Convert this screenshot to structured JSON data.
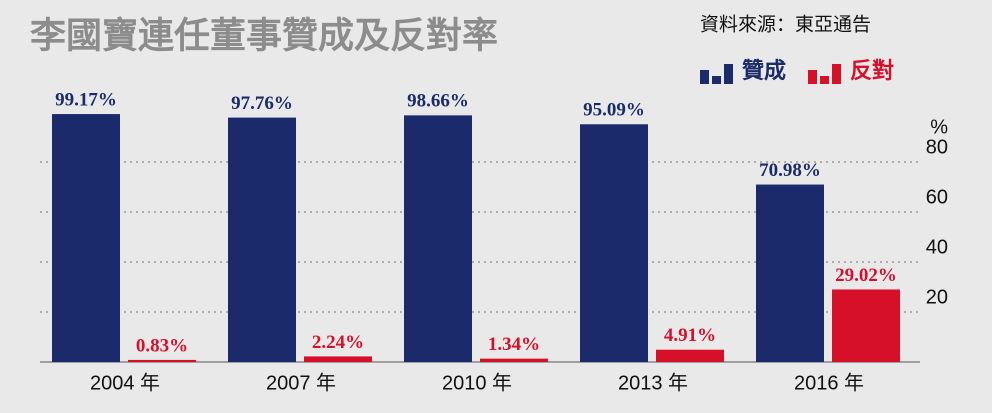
{
  "chart_data": {
    "type": "bar",
    "title": "李國寶連任董事贊成及反對率",
    "source": "資料來源：東亞通告",
    "y_label": "%",
    "categories": [
      "2004 年",
      "2007 年",
      "2010 年",
      "2013 年",
      "2016 年"
    ],
    "series": [
      {
        "name": "贊成",
        "color": "#1b2a6b",
        "values": [
          99.17,
          97.76,
          98.66,
          95.09,
          70.98
        ],
        "value_labels": [
          "99.17%",
          "97.76%",
          "98.66%",
          "95.09%",
          "70.98%"
        ]
      },
      {
        "name": "反對",
        "color": "#d7102a",
        "values": [
          0.83,
          2.24,
          1.34,
          4.91,
          29.02
        ],
        "value_labels": [
          "0.83%",
          "2.24%",
          "1.34%",
          "4.91%",
          "29.02%"
        ]
      }
    ],
    "ylim": [
      0,
      100
    ],
    "yticks": [
      20,
      40,
      60,
      80
    ],
    "grid": true,
    "legend": "top-right"
  }
}
